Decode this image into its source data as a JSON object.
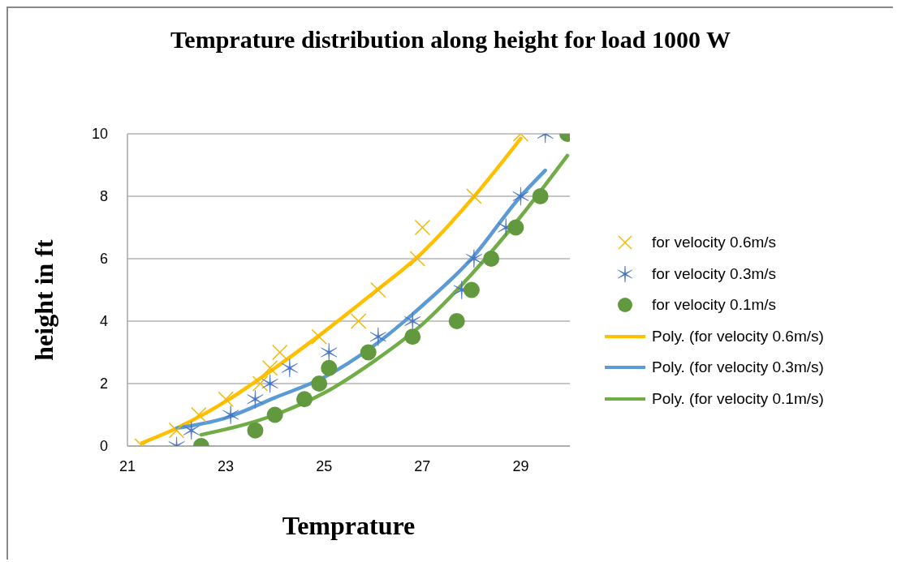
{
  "chart_data": {
    "type": "scatter",
    "title": "Temprature distribution along height for load 1000 W",
    "xlabel": "Temprature",
    "ylabel": "height in ft",
    "xlim": [
      21,
      30
    ],
    "xticks": [
      21,
      23,
      25,
      27,
      29
    ],
    "ylim": [
      0,
      10
    ],
    "yticks": [
      0,
      2,
      4,
      6,
      8,
      10
    ],
    "grid": "y",
    "legend": "right",
    "series": [
      {
        "type": "scatter",
        "name": "for velocity 0.6m/s",
        "color": "#f5b700",
        "marker": "cross",
        "x": [
          21.3,
          22,
          22.45,
          23,
          23.7,
          23.9,
          24.1,
          24.9,
          25.7,
          26.1,
          26.9,
          27.0,
          28.05,
          29
        ],
        "values": [
          0,
          0.5,
          1,
          1.5,
          2,
          2.5,
          3,
          3.5,
          4,
          5,
          6,
          7,
          8,
          10
        ]
      },
      {
        "type": "scatter",
        "name": "for velocity 0.3m/s",
        "color": "#4472c4",
        "x": [
          22.0,
          22.3,
          23.1,
          23.6,
          23.9,
          24.3,
          25.1,
          26.1,
          26.8,
          27.8,
          28.05,
          28.7,
          29.0,
          29.5
        ],
        "values": [
          0,
          0.5,
          1,
          1.5,
          2,
          2.5,
          3,
          3.5,
          4,
          5,
          6,
          7,
          8,
          10
        ]
      },
      {
        "name": "for velocity 0.1m/s",
        "color": "#62993e",
        "marker": "circle",
        "x": [
          22.5,
          23.6,
          24.0,
          24.6,
          24.9,
          25.1,
          25.9,
          26.8,
          27.7,
          28.0,
          28.4,
          28.9,
          29.4,
          29.95
        ],
        "values": [
          0,
          0.5,
          1,
          1.5,
          2,
          2.5,
          3,
          3.5,
          4,
          5,
          6,
          7,
          8,
          10
        ]
      },
      {
        "type": "line",
        "name": "Poly. (for velocity 0.6m/s)",
        "color": "#ffc000",
        "x": [
          21.3,
          22,
          23,
          24,
          25,
          26,
          27,
          28,
          29
        ],
        "values": [
          0.1,
          0.57,
          1.43,
          2.5,
          3.66,
          4.9,
          6.2,
          7.9,
          9.85
        ]
      },
      {
        "type": "line",
        "name": "Poly. (for velocity 0.3m/s)",
        "color": "#5b9bd5",
        "x": [
          22,
          23,
          24,
          25,
          26,
          27,
          28,
          29,
          29.5
        ],
        "values": [
          0.57,
          0.9,
          1.55,
          2.2,
          3.2,
          4.5,
          6.0,
          8.0,
          8.83
        ]
      },
      {
        "type": "line",
        "name": "Poly. (for velocity 0.1m/s)",
        "color": "#70ad47",
        "x": [
          22.5,
          24,
          25,
          26,
          27,
          28,
          29,
          29.95
        ],
        "values": [
          0.36,
          1.0,
          1.7,
          2.7,
          3.9,
          5.5,
          7.35,
          9.3
        ]
      }
    ]
  }
}
